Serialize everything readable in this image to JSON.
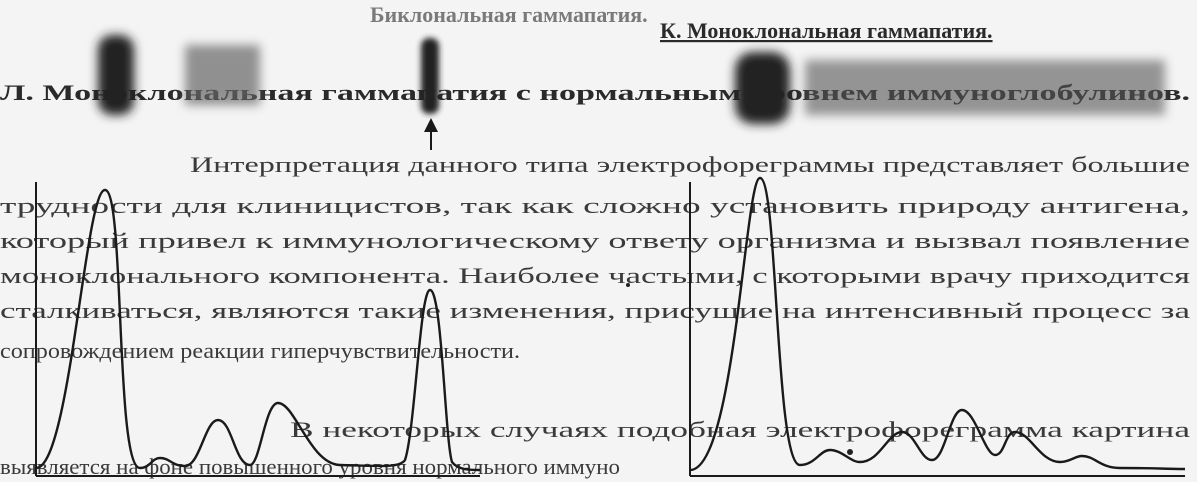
{
  "header": {
    "section_k": "К. Моноклональная гаммапатия.",
    "section_k_right": "Биклональная гаммапатия.",
    "section_l": "Л. Моноклональная гаммапатия с нормальным уровнем иммуноглобулинов."
  },
  "body": {
    "lines": [
      "Интерпретация данного типа электрофореграммы представляет большие",
      "трудности для клиницистов, так как сложно установить природу антигена,",
      "который привел к иммунологическому ответу организма и вызвал появление",
      "моноклонального компонента. Наиболее частыми, с которыми врачу приходится",
      "сталкиваться, являются такие изменения, присущие на интенсивный процесс за",
      "сопровождением реакции гиперчувствительности.",
      "В некоторых случаях подобная электрофореграмма картина",
      "выявляется на фоне повышенного уровня нормального иммуно"
    ]
  }
}
